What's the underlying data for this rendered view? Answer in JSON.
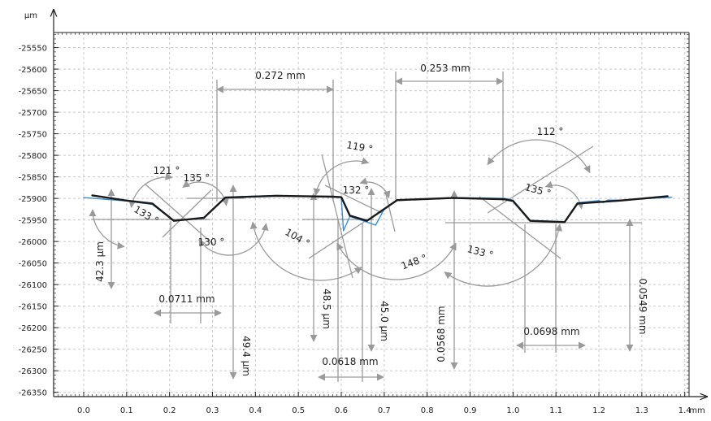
{
  "chart_data": {
    "type": "line",
    "title": "",
    "xlabel": "",
    "ylabel": "",
    "x_unit": "mm",
    "y_unit": "µm",
    "xlim": [
      -0.07,
      1.41
    ],
    "ylim": [
      -26360,
      -25515
    ],
    "x_ticks": [
      0.0,
      0.1,
      0.2,
      0.3,
      0.4,
      0.5,
      0.6,
      0.7,
      0.8,
      0.9,
      1.0,
      1.1,
      1.2,
      1.3,
      1.4
    ],
    "x_tick_labels": [
      "0.0",
      "0.1",
      "0.2",
      "0.3",
      "0.4",
      "0.5",
      "0.6",
      "0.7",
      "0.8",
      "0.9",
      "1.0",
      "1.1",
      "1.2",
      "1.3",
      "1.4"
    ],
    "y_ticks": [
      -25550,
      -25600,
      -25650,
      -25700,
      -25750,
      -25800,
      -25850,
      -25900,
      -25950,
      -26000,
      -26050,
      -26100,
      -26150,
      -26200,
      -26250,
      -26300,
      -26350
    ],
    "y_tick_labels": [
      "-25550",
      "-25600",
      "-25650",
      "-25700",
      "-25750",
      "-25800",
      "-25850",
      "-25900",
      "-25950",
      "-26000",
      "-26050",
      "-26100",
      "-26150",
      "-26200",
      "-26250",
      "-26300",
      "-26350"
    ],
    "grid": true,
    "series": [
      {
        "color": "#1a1a1a",
        "x": [
          0.02,
          0.1,
          0.16,
          0.21,
          0.28,
          0.33,
          0.45,
          0.58,
          0.6,
          0.62,
          0.66,
          0.73,
          0.86,
          0.98,
          1.0,
          1.04,
          1.12,
          1.15,
          1.25,
          1.36
        ],
        "y": [
          -25893,
          -25905,
          -25912,
          -25952,
          -25945,
          -25898,
          -25894,
          -25896,
          -25897,
          -25940,
          -25952,
          -25904,
          -25899,
          -25902,
          -25906,
          -25952,
          -25955,
          -25912,
          -25905,
          -25895
        ]
      },
      {
        "color": "#3a8fd9",
        "x": [
          0.0,
          0.1,
          0.16,
          0.21,
          0.28,
          0.33,
          0.45,
          0.58,
          0.6,
          0.605,
          0.62,
          0.66,
          0.68,
          0.7,
          0.73,
          0.86,
          0.98,
          1.0,
          1.04,
          1.12,
          1.15,
          1.2,
          1.21,
          1.22,
          1.25,
          1.37
        ],
        "y": [
          -25898,
          -25906,
          -25914,
          -25952,
          -25946,
          -25897,
          -25893,
          -25897,
          -25898,
          -25975,
          -25942,
          -25955,
          -25962,
          -25925,
          -25905,
          -25898,
          -25900,
          -25904,
          -25951,
          -25954,
          -25910,
          -25905,
          -25910,
          -25904,
          -25904,
          -25897
        ]
      }
    ],
    "annotations": {
      "distances": [
        "0.272 mm",
        "0.253 mm",
        "0.0711 mm",
        "0.0618 mm",
        "0.0698 mm"
      ],
      "depths": [
        "42.3 µm",
        "49.4 µm",
        "48.5 µm",
        "45.0 µm",
        "0.0568 mm",
        "0.0549 mm"
      ],
      "angles": [
        "121 °",
        "135 °",
        "133 °",
        "130 °",
        "119 °",
        "132 °",
        "104 °",
        "148 °",
        "133 °",
        "112 °",
        "135 °"
      ]
    }
  }
}
